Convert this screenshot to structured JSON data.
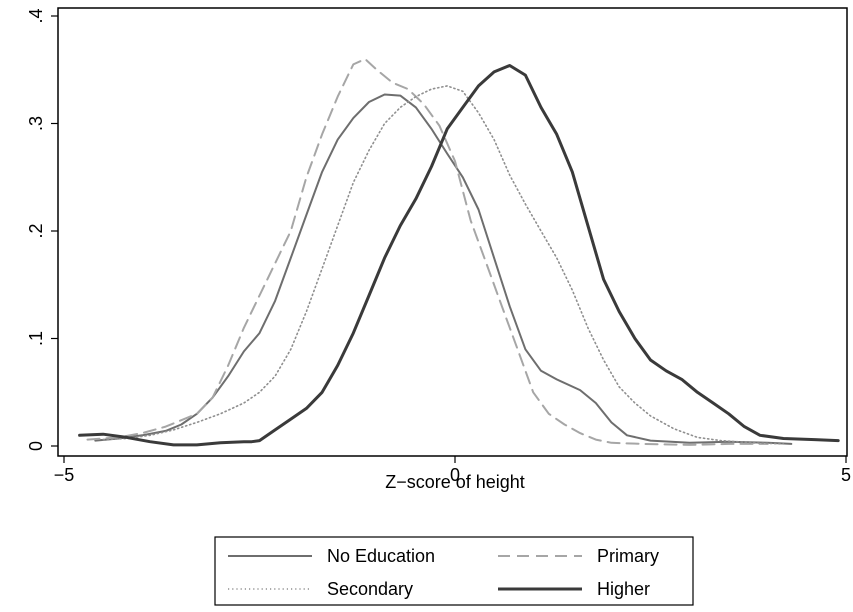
{
  "chart_data": {
    "type": "line",
    "title": "",
    "xlabel": "Z−score of height",
    "ylabel": "",
    "xlim": [
      -4.9,
      4.95
    ],
    "ylim": [
      0,
      0.4
    ],
    "x_ticks": [
      -5,
      0,
      5
    ],
    "x_tick_labels": [
      "−5",
      "0",
      "5"
    ],
    "y_ticks": [
      0,
      0.1,
      0.2,
      0.3,
      0.4
    ],
    "y_tick_labels": [
      "0",
      ".1",
      ".2",
      ".3",
      ".4"
    ],
    "grid": false,
    "legend": {
      "position": "bottom",
      "columns": 2
    },
    "series": [
      {
        "name": "No Education",
        "color": "#6e6e6e",
        "dash": "",
        "width": 2,
        "points": [
          [
            -4.6,
            0.005
          ],
          [
            -4.3,
            0.007
          ],
          [
            -4.0,
            0.01
          ],
          [
            -3.7,
            0.014
          ],
          [
            -3.5,
            0.02
          ],
          [
            -3.3,
            0.03
          ],
          [
            -3.1,
            0.045
          ],
          [
            -2.9,
            0.065
          ],
          [
            -2.7,
            0.088
          ],
          [
            -2.5,
            0.105
          ],
          [
            -2.3,
            0.135
          ],
          [
            -2.1,
            0.175
          ],
          [
            -1.9,
            0.215
          ],
          [
            -1.7,
            0.255
          ],
          [
            -1.5,
            0.285
          ],
          [
            -1.3,
            0.305
          ],
          [
            -1.1,
            0.32
          ],
          [
            -0.9,
            0.327
          ],
          [
            -0.7,
            0.326
          ],
          [
            -0.5,
            0.315
          ],
          [
            -0.3,
            0.295
          ],
          [
            -0.1,
            0.272
          ],
          [
            0.1,
            0.25
          ],
          [
            0.3,
            0.22
          ],
          [
            0.5,
            0.175
          ],
          [
            0.7,
            0.13
          ],
          [
            0.9,
            0.09
          ],
          [
            1.1,
            0.07
          ],
          [
            1.3,
            0.062
          ],
          [
            1.6,
            0.052
          ],
          [
            1.8,
            0.04
          ],
          [
            2.0,
            0.022
          ],
          [
            2.2,
            0.01
          ],
          [
            2.5,
            0.005
          ],
          [
            3.0,
            0.003
          ],
          [
            3.5,
            0.004
          ],
          [
            4.0,
            0.003
          ],
          [
            4.3,
            0.002
          ]
        ]
      },
      {
        "name": "Primary",
        "color": "#a6a6a6",
        "dash": "12 7",
        "width": 2,
        "points": [
          [
            -4.7,
            0.006
          ],
          [
            -4.3,
            0.008
          ],
          [
            -4.0,
            0.012
          ],
          [
            -3.7,
            0.018
          ],
          [
            -3.5,
            0.024
          ],
          [
            -3.3,
            0.03
          ],
          [
            -3.1,
            0.045
          ],
          [
            -2.9,
            0.075
          ],
          [
            -2.7,
            0.11
          ],
          [
            -2.5,
            0.14
          ],
          [
            -2.3,
            0.17
          ],
          [
            -2.1,
            0.2
          ],
          [
            -1.9,
            0.25
          ],
          [
            -1.7,
            0.29
          ],
          [
            -1.5,
            0.325
          ],
          [
            -1.3,
            0.355
          ],
          [
            -1.15,
            0.36
          ],
          [
            -1.0,
            0.35
          ],
          [
            -0.8,
            0.338
          ],
          [
            -0.6,
            0.332
          ],
          [
            -0.4,
            0.318
          ],
          [
            -0.2,
            0.298
          ],
          [
            0.0,
            0.265
          ],
          [
            0.2,
            0.21
          ],
          [
            0.4,
            0.17
          ],
          [
            0.6,
            0.13
          ],
          [
            0.8,
            0.09
          ],
          [
            1.0,
            0.05
          ],
          [
            1.2,
            0.03
          ],
          [
            1.4,
            0.02
          ],
          [
            1.6,
            0.012
          ],
          [
            1.8,
            0.006
          ],
          [
            2.0,
            0.003
          ],
          [
            2.4,
            0.002
          ],
          [
            3.0,
            0.001
          ],
          [
            3.5,
            0.002
          ],
          [
            4.0,
            0.002
          ]
        ]
      },
      {
        "name": "Secondary",
        "color": "#8f8f8f",
        "dash": "1.2 3",
        "width": 1.6,
        "points": [
          [
            -4.5,
            0.006
          ],
          [
            -4.2,
            0.007
          ],
          [
            -3.9,
            0.01
          ],
          [
            -3.6,
            0.015
          ],
          [
            -3.3,
            0.022
          ],
          [
            -3.0,
            0.03
          ],
          [
            -2.7,
            0.04
          ],
          [
            -2.5,
            0.05
          ],
          [
            -2.3,
            0.065
          ],
          [
            -2.1,
            0.09
          ],
          [
            -1.9,
            0.125
          ],
          [
            -1.7,
            0.165
          ],
          [
            -1.5,
            0.205
          ],
          [
            -1.3,
            0.245
          ],
          [
            -1.1,
            0.275
          ],
          [
            -0.9,
            0.3
          ],
          [
            -0.7,
            0.315
          ],
          [
            -0.5,
            0.325
          ],
          [
            -0.3,
            0.332
          ],
          [
            -0.1,
            0.335
          ],
          [
            0.1,
            0.33
          ],
          [
            0.3,
            0.31
          ],
          [
            0.5,
            0.285
          ],
          [
            0.7,
            0.252
          ],
          [
            0.9,
            0.225
          ],
          [
            1.1,
            0.2
          ],
          [
            1.3,
            0.175
          ],
          [
            1.5,
            0.145
          ],
          [
            1.7,
            0.11
          ],
          [
            1.9,
            0.08
          ],
          [
            2.1,
            0.055
          ],
          [
            2.3,
            0.04
          ],
          [
            2.5,
            0.028
          ],
          [
            2.8,
            0.016
          ],
          [
            3.1,
            0.008
          ],
          [
            3.4,
            0.005
          ],
          [
            3.8,
            0.003
          ],
          [
            4.2,
            0.002
          ]
        ]
      },
      {
        "name": "Higher",
        "color": "#3a3a3a",
        "dash": "",
        "width": 3,
        "points": [
          [
            -4.8,
            0.01
          ],
          [
            -4.5,
            0.011
          ],
          [
            -4.2,
            0.008
          ],
          [
            -3.9,
            0.004
          ],
          [
            -3.6,
            0.001
          ],
          [
            -3.3,
            0.001
          ],
          [
            -3.0,
            0.003
          ],
          [
            -2.7,
            0.004
          ],
          [
            -2.6,
            0.004
          ],
          [
            -2.5,
            0.005
          ],
          [
            -2.3,
            0.015
          ],
          [
            -2.1,
            0.025
          ],
          [
            -1.9,
            0.035
          ],
          [
            -1.7,
            0.05
          ],
          [
            -1.5,
            0.075
          ],
          [
            -1.3,
            0.105
          ],
          [
            -1.1,
            0.14
          ],
          [
            -0.9,
            0.175
          ],
          [
            -0.7,
            0.205
          ],
          [
            -0.5,
            0.23
          ],
          [
            -0.3,
            0.26
          ],
          [
            -0.1,
            0.295
          ],
          [
            0.1,
            0.315
          ],
          [
            0.3,
            0.335
          ],
          [
            0.5,
            0.348
          ],
          [
            0.7,
            0.354
          ],
          [
            0.9,
            0.345
          ],
          [
            1.1,
            0.315
          ],
          [
            1.3,
            0.29
          ],
          [
            1.5,
            0.255
          ],
          [
            1.7,
            0.205
          ],
          [
            1.9,
            0.155
          ],
          [
            2.1,
            0.125
          ],
          [
            2.3,
            0.1
          ],
          [
            2.5,
            0.08
          ],
          [
            2.7,
            0.07
          ],
          [
            2.9,
            0.062
          ],
          [
            3.1,
            0.05
          ],
          [
            3.3,
            0.04
          ],
          [
            3.5,
            0.03
          ],
          [
            3.7,
            0.018
          ],
          [
            3.9,
            0.01
          ],
          [
            4.2,
            0.007
          ],
          [
            4.6,
            0.006
          ],
          [
            4.9,
            0.005
          ]
        ]
      }
    ]
  }
}
